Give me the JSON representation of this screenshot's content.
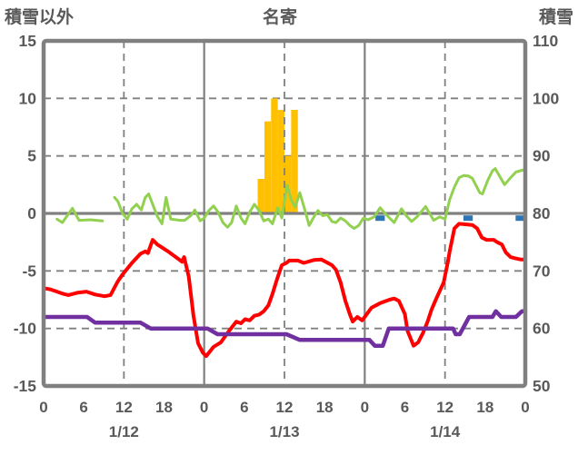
{
  "header": {
    "left_axis_title": "積雪以外",
    "title": "名寄",
    "right_axis_title": "積雪"
  },
  "colors": {
    "axis_gray": "#808080",
    "text_gray": "#595959",
    "background": "#FFFFFF",
    "green_line": "#92D050",
    "red_line": "#FF0000",
    "purple_line": "#7030A0",
    "bar_gold": "#FFC000",
    "marker_blue": "#2E75B6"
  },
  "chart_data": {
    "type": "line",
    "title": "名寄",
    "left_axis": {
      "label": "積雪以外",
      "min": -15,
      "max": 15,
      "ticks": [
        15,
        10,
        5,
        0,
        -5,
        -10,
        -15
      ]
    },
    "right_axis": {
      "label": "積雪",
      "min": 50,
      "max": 110,
      "ticks": [
        110,
        100,
        90,
        80,
        70,
        60,
        50
      ]
    },
    "x_axis": {
      "total_hours": 72,
      "tick_interval_hours": 6,
      "hour_labels": [
        "0",
        "6",
        "12",
        "18",
        "0",
        "6",
        "12",
        "18",
        "0",
        "6",
        "12",
        "18",
        "0"
      ],
      "date_labels": [
        {
          "label": "1/12",
          "hour": 12
        },
        {
          "label": "1/13",
          "hour": 36
        },
        {
          "label": "1/14",
          "hour": 60
        }
      ],
      "solid_gridline_hours": [
        24,
        48
      ],
      "dashed_gridline_hours": [
        12,
        36,
        60
      ]
    },
    "grid": {
      "horizontal_dashed_values": [
        10,
        5,
        -5,
        -10
      ],
      "zero_line_value": 0
    },
    "bars": {
      "name": "snowfall-bars",
      "axis": "left",
      "color": "#FFC000",
      "start_hour": 32,
      "bar_width_hours": 1,
      "values": [
        3,
        8,
        10,
        9,
        5,
        9
      ]
    },
    "markers": {
      "name": "snow-markers",
      "color": "#2E75B6",
      "value": -0.45,
      "width_hours": 1.4,
      "hours": [
        50.3,
        63.45,
        71.25
      ]
    },
    "series": [
      {
        "name": "green-line",
        "axis": "left",
        "color": "#92D050",
        "width": 3,
        "segments": [
          [
            [
              2,
              -0.5
            ],
            [
              2.8,
              -0.8
            ],
            [
              4.3,
              0.45
            ],
            [
              5.3,
              -0.6
            ],
            [
              7,
              -0.55
            ],
            [
              8.8,
              -0.65
            ]
          ],
          [
            [
              10.6,
              1.4
            ],
            [
              11.1,
              1.05
            ],
            [
              11.8,
              0
            ],
            [
              12.5,
              -0.5
            ],
            [
              13.2,
              0.4
            ],
            [
              13.9,
              0.8
            ],
            [
              14.6,
              0.3
            ],
            [
              15.2,
              1.4
            ],
            [
              15.7,
              1.7
            ],
            [
              16.3,
              0.8
            ],
            [
              17,
              -0.25
            ],
            [
              17.7,
              -0.9
            ],
            [
              18.3,
              1.4
            ],
            [
              19,
              -0.5
            ],
            [
              20.4,
              -0.6
            ],
            [
              21.1,
              -0.6
            ],
            [
              22,
              -0.2
            ],
            [
              22.6,
              0.3
            ],
            [
              23.4,
              -0.65
            ],
            [
              24,
              -0.4
            ],
            [
              24.7,
              0.25
            ],
            [
              25.4,
              0.65
            ],
            [
              26.1,
              0.1
            ],
            [
              26.8,
              -0.8
            ],
            [
              27.5,
              -1.2
            ],
            [
              28.1,
              -0.8
            ],
            [
              28.8,
              0.65
            ],
            [
              29.5,
              -0.4
            ],
            [
              30.1,
              -0.9
            ],
            [
              30.8,
              0.1
            ],
            [
              31.5,
              0.8
            ],
            [
              32.2,
              0.25
            ],
            [
              32.9,
              -0.65
            ],
            [
              33.6,
              -0.5
            ],
            [
              34.2,
              -0.9
            ],
            [
              35,
              0.5
            ],
            [
              35.6,
              -0.4
            ],
            [
              36.4,
              2.45
            ],
            [
              37,
              1.2
            ],
            [
              37.6,
              0.55
            ],
            [
              38.3,
              1.8
            ],
            [
              39,
              0.4
            ],
            [
              39.7,
              -1.05
            ],
            [
              40.4,
              -0.3
            ],
            [
              41,
              0.25
            ],
            [
              41.7,
              -0.2
            ],
            [
              42.4,
              -0.1
            ],
            [
              43.1,
              -0.7
            ],
            [
              43.7,
              -0.8
            ],
            [
              44.4,
              -0.4
            ],
            [
              45.1,
              -0.65
            ],
            [
              45.8,
              -1.05
            ],
            [
              46.4,
              -1.3
            ],
            [
              47.1,
              -1.05
            ],
            [
              47.8,
              -0.4
            ],
            [
              48.5,
              -0.55
            ],
            [
              49.4,
              -0.3
            ],
            [
              50.3,
              0.5
            ],
            [
              51.2,
              -0.1
            ],
            [
              52.4,
              -0.8
            ],
            [
              53.5,
              0.4
            ],
            [
              54.2,
              -0.2
            ],
            [
              55,
              -0.7
            ],
            [
              55.8,
              -0.3
            ],
            [
              57.1,
              0.6
            ],
            [
              58.3,
              -0.6
            ],
            [
              59.2,
              -0.3
            ],
            [
              60,
              -0.5
            ],
            [
              60.7,
              1.2
            ],
            [
              61.4,
              2.3
            ],
            [
              62.1,
              3.1
            ],
            [
              62.8,
              3.3
            ],
            [
              63.5,
              3.25
            ],
            [
              64.1,
              3.05
            ],
            [
              65.2,
              1.8
            ],
            [
              65.6,
              1.7
            ],
            [
              66.4,
              2.9
            ],
            [
              67.1,
              3.7
            ],
            [
              67.5,
              3.9
            ],
            [
              68.5,
              2.9
            ],
            [
              68.9,
              2.5
            ],
            [
              69.8,
              3.1
            ],
            [
              70.6,
              3.6
            ],
            [
              71.5,
              3.75
            ],
            [
              72,
              3.8
            ]
          ]
        ]
      },
      {
        "name": "temperature-line",
        "axis": "left",
        "color": "#FF0000",
        "width": 4,
        "segments": [
          [
            [
              0,
              -6.5
            ],
            [
              1,
              -6.6
            ],
            [
              2,
              -6.8
            ],
            [
              3,
              -7.0
            ],
            [
              3.7,
              -7.1
            ],
            [
              5,
              -6.9
            ],
            [
              6.4,
              -6.8
            ],
            [
              7.7,
              -7.05
            ],
            [
              9.1,
              -7.2
            ],
            [
              10,
              -7.1
            ],
            [
              11.1,
              -5.9
            ],
            [
              11.8,
              -5.3
            ],
            [
              13.2,
              -4.3
            ],
            [
              14.5,
              -3.5
            ],
            [
              15.2,
              -3.3
            ],
            [
              15.6,
              -3.45
            ],
            [
              16.3,
              -2.3
            ],
            [
              17,
              -2.7
            ],
            [
              18.6,
              -3.3
            ],
            [
              20,
              -3.9
            ],
            [
              20.7,
              -4.2
            ],
            [
              21,
              -3.8
            ],
            [
              21.7,
              -5.5
            ],
            [
              22.4,
              -8.9
            ],
            [
              23.1,
              -11.3
            ],
            [
              23.8,
              -12.1
            ],
            [
              24.3,
              -12.4
            ],
            [
              25.4,
              -11.6
            ],
            [
              26.5,
              -11.2
            ],
            [
              27.6,
              -10.3
            ],
            [
              28.8,
              -9.4
            ],
            [
              29.5,
              -9.55
            ],
            [
              30.1,
              -9.2
            ],
            [
              30.8,
              -9.3
            ],
            [
              31.5,
              -8.9
            ],
            [
              32.2,
              -8.8
            ],
            [
              32.9,
              -8.5
            ],
            [
              33.6,
              -8.0
            ],
            [
              34.2,
              -7.0
            ],
            [
              34.9,
              -5.7
            ],
            [
              35.6,
              -4.5
            ],
            [
              36.3,
              -4.3
            ],
            [
              36.7,
              -4.1
            ],
            [
              38,
              -4.1
            ],
            [
              38.9,
              -4.3
            ],
            [
              40.4,
              -4.05
            ],
            [
              41.5,
              -4.0
            ],
            [
              43.1,
              -4.5
            ],
            [
              43.7,
              -4.9
            ],
            [
              44.4,
              -6.0
            ],
            [
              45.1,
              -7.6
            ],
            [
              45.8,
              -8.8
            ],
            [
              46.2,
              -9.4
            ],
            [
              46.9,
              -9.0
            ],
            [
              47.6,
              -9.3
            ],
            [
              48,
              -9.0
            ],
            [
              49,
              -8.2
            ],
            [
              50.3,
              -7.8
            ],
            [
              51.7,
              -7.5
            ],
            [
              52.4,
              -7.4
            ],
            [
              53.1,
              -7.6
            ],
            [
              54,
              -8.75
            ],
            [
              54.4,
              -10.2
            ],
            [
              55.3,
              -11.5
            ],
            [
              56,
              -11.2
            ],
            [
              56.7,
              -10.4
            ],
            [
              57.4,
              -9.4
            ],
            [
              58,
              -8.35
            ],
            [
              58.7,
              -7.4
            ],
            [
              59.4,
              -6.5
            ],
            [
              59.8,
              -6.0
            ],
            [
              60.4,
              -4.3
            ],
            [
              60.7,
              -3.3
            ],
            [
              61.4,
              -1.3
            ],
            [
              62.1,
              -0.9
            ],
            [
              63,
              -0.95
            ],
            [
              64.1,
              -1.0
            ],
            [
              64.8,
              -1.3
            ],
            [
              65.5,
              -2.1
            ],
            [
              66.2,
              -2.3
            ],
            [
              67.3,
              -2.3
            ],
            [
              67.8,
              -2.5
            ],
            [
              68.5,
              -2.7
            ],
            [
              69.1,
              -3.4
            ],
            [
              69.8,
              -3.8
            ],
            [
              70.5,
              -3.9
            ],
            [
              71.3,
              -4.0
            ],
            [
              72,
              -4.0
            ]
          ]
        ]
      },
      {
        "name": "snow-depth-line",
        "axis": "right",
        "color": "#7030A0",
        "width": 4.5,
        "segments": [
          [
            [
              0,
              62
            ],
            [
              6.5,
              62
            ],
            [
              7.7,
              61
            ],
            [
              14.5,
              61
            ],
            [
              16,
              60
            ],
            [
              24.5,
              60
            ],
            [
              26,
              59
            ],
            [
              36.3,
              59
            ],
            [
              38.3,
              58
            ],
            [
              48.7,
              58
            ],
            [
              49.5,
              57
            ],
            [
              50.7,
              57
            ],
            [
              51.6,
              60
            ],
            [
              61.2,
              60
            ],
            [
              61.6,
              59
            ],
            [
              62.2,
              59
            ],
            [
              63.6,
              62
            ],
            [
              67.1,
              62
            ],
            [
              67.6,
              63
            ],
            [
              68.4,
              62
            ],
            [
              70.6,
              62
            ],
            [
              71.5,
              63
            ],
            [
              72,
              63
            ]
          ]
        ]
      }
    ]
  }
}
